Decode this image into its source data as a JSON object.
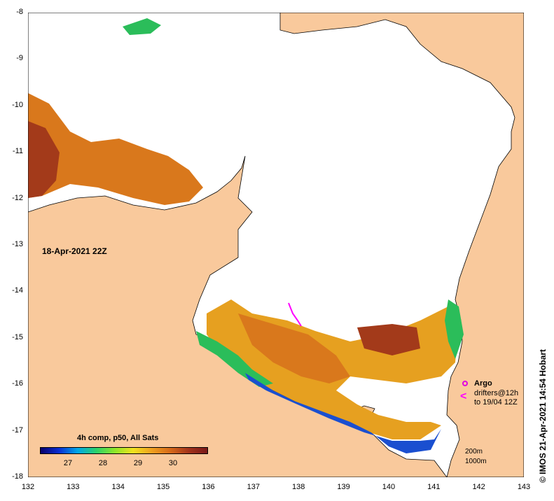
{
  "map": {
    "composite_date": "18-Apr-2021 22Z",
    "x_ticks": [
      "132",
      "133",
      "134",
      "135",
      "136",
      "137",
      "138",
      "139",
      "140",
      "141",
      "142",
      "143"
    ],
    "y_ticks": [
      "-8",
      "-9",
      "-10",
      "-11",
      "-12",
      "-13",
      "-14",
      "-15",
      "-16",
      "-17",
      "-18"
    ],
    "lon_range": [
      132,
      143
    ],
    "lat_range": [
      -18,
      -8
    ]
  },
  "colorbar": {
    "title": "4h comp, p50, All Sats",
    "range": [
      26.2,
      31.0
    ],
    "ticks": [
      "27",
      "28",
      "29",
      "30"
    ],
    "stops": [
      "#08006b",
      "#0a2fd4",
      "#00a8e8",
      "#2bd26b",
      "#8ee62a",
      "#f2e21e",
      "#f0a020",
      "#d66a1a",
      "#a3341c",
      "#7a1a1a"
    ]
  },
  "legend": {
    "argo_label": "Argo",
    "drifters_line1": "drifters@12h",
    "drifters_line2": "to 19/04 12Z",
    "drifter_symbol": "<",
    "depth_200": "200m",
    "depth_1000": "1000m"
  },
  "credit": "© IMOS 21-Apr-2021 14:54 Hobart",
  "colors": {
    "land": "#f9c99c",
    "warm": "#d9781c",
    "hot": "#a33a1a",
    "mid": "#e6a020",
    "cool": "#2bbd5a",
    "cold": "#1a4fd0",
    "drifter": "#ff00ff"
  }
}
